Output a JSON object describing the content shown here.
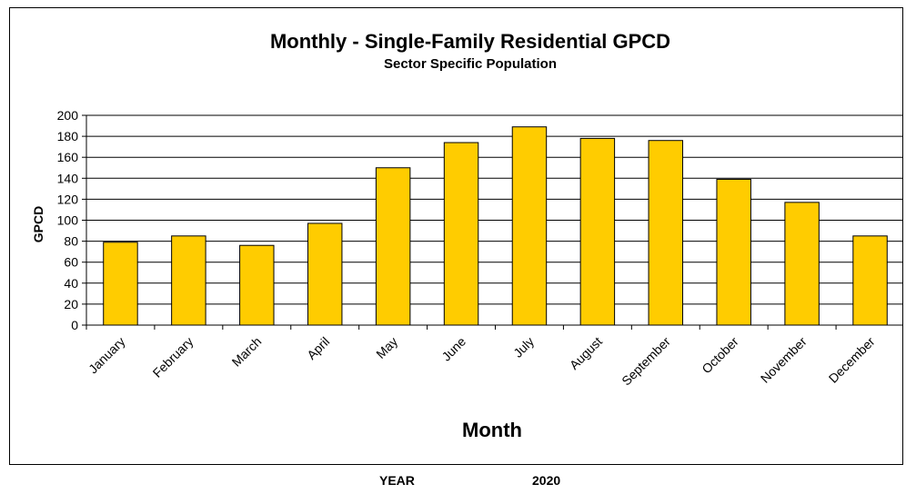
{
  "chart_data": {
    "type": "bar",
    "title": "Monthly - Single-Family Residential GPCD",
    "subtitle": "Sector Specific Population",
    "xlabel": "Month",
    "ylabel": "GPCD",
    "ylim": [
      0,
      200
    ],
    "yticks": [
      0,
      20,
      40,
      60,
      80,
      100,
      120,
      140,
      160,
      180,
      200
    ],
    "grid": true,
    "legend": "none",
    "categories": [
      "January",
      "February",
      "March",
      "April",
      "May",
      "June",
      "July",
      "August",
      "September",
      "October",
      "November",
      "December"
    ],
    "values": [
      79,
      85,
      76,
      97,
      150,
      174,
      189,
      178,
      176,
      139,
      117,
      85
    ],
    "bar_color": "#FFCC00",
    "bar_outline_color": "#000000"
  },
  "footer": {
    "year_label": "YEAR",
    "year_value": "2020"
  }
}
